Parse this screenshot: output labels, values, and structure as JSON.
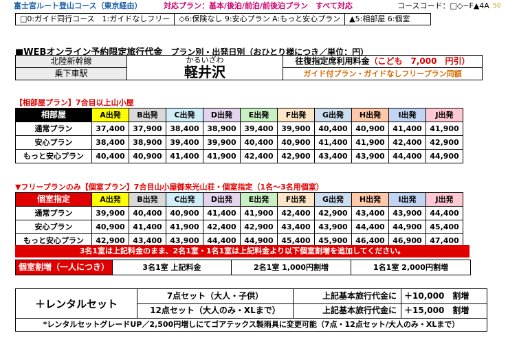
{
  "header": {
    "course_name": "富士宮ルート登山コース（東京経由）",
    "plan_text": "対応プラン：基本/後泊/前泊/前後泊プラン　すべて対応",
    "course_code": "コースコード：□◇−F▲4A",
    "page_num": "50"
  },
  "legend": {
    "col1": "□0:ガイド同行コース　1:ガイドなしフリー",
    "col2": "◇6:保険なし 9:安心プラン A:もっと安心プラン",
    "col3": "▲5:相部屋 6:個室"
  },
  "section": {
    "title": "■WEBオンライン予約限定旅行代金",
    "subtitle": "　プラン別・出発日別（おひとり様につき／単位：円）"
  },
  "station": {
    "line": "北陸新幹線",
    "board_label": "乗下車駅",
    "reading": "かるいざわ",
    "name": "軽井沢",
    "fare_label": "往復指定席利用料金",
    "child_fare": "（こども　7,000　円引）",
    "note": "ガイド付プラン・ガイドなしフリープラン同額"
  },
  "shared_room": {
    "title": "【相部屋プラン】7合目以上山小屋",
    "header_label": "相部屋",
    "departures": [
      "A出発",
      "B出発",
      "C出発",
      "D出発",
      "E出発",
      "F出発",
      "G出発",
      "H出発",
      "I出発",
      "J出発"
    ],
    "rows": [
      {
        "label": "通常プラン",
        "values": [
          "37,400",
          "37,900",
          "38,400",
          "38,900",
          "39,400",
          "39,900",
          "40,400",
          "40,900",
          "41,400",
          "41,900"
        ]
      },
      {
        "label": "安心プラン",
        "values": [
          "38,400",
          "38,900",
          "39,400",
          "39,900",
          "40,400",
          "40,900",
          "41,400",
          "41,900",
          "42,400",
          "42,900"
        ]
      },
      {
        "label": "もっと安心プラン",
        "values": [
          "40,400",
          "40,900",
          "41,400",
          "41,900",
          "42,400",
          "42,900",
          "43,400",
          "43,900",
          "44,400",
          "44,900"
        ]
      }
    ]
  },
  "private_room": {
    "title": "▼フリープランのみ【個室プラン】7合目山小屋御来光山荘・個室指定（1名〜3名用個室）",
    "header_label": "個室指定",
    "departures": [
      "A出発",
      "B出発",
      "C出発",
      "D出発",
      "E出発",
      "F出発",
      "G出発",
      "H出発",
      "I出発",
      "J出発"
    ],
    "rows": [
      {
        "label": "通常プラン",
        "values": [
          "39,900",
          "40,400",
          "40,900",
          "41,400",
          "41,900",
          "42,400",
          "42,900",
          "43,400",
          "43,900",
          "44,400"
        ]
      },
      {
        "label": "安心プラン",
        "values": [
          "40,900",
          "41,400",
          "41,900",
          "42,400",
          "42,900",
          "43,400",
          "43,900",
          "44,400",
          "44,900",
          "45,400"
        ]
      },
      {
        "label": "もっと安心プラン",
        "values": [
          "42,900",
          "43,400",
          "43,900",
          "44,400",
          "44,900",
          "45,400",
          "45,900",
          "46,400",
          "46,900",
          "47,400"
        ]
      }
    ],
    "note": "3名1室は上記料金のまま、2名1室・1名1室は上記料金より以下個室割増を追加してください。"
  },
  "surcharge": {
    "label": "個室割増（一人につき）",
    "items": [
      "3名1室 上記料金",
      "2名1室 1,000円割増",
      "1名1室 2,000円割増"
    ]
  },
  "rental": {
    "label": "＋レンタルセット",
    "rows": [
      {
        "set": "7点セット（大人・子供）",
        "desc": "上記基本旅行代金に",
        "price": "＋10,000　割増"
      },
      {
        "set": "12点セット（大人のみ・XLまで）",
        "desc": "上記基本旅行代金に",
        "price": "＋15,000　割増"
      }
    ],
    "note": "*レンタルセットグレードUP／2,500円増しにてゴアテックス製雨具に変更可能（7点・12点セット/大人のみ・XLまで）"
  },
  "colors": {
    "accent_red": "#e00000",
    "orange": "#d86a00",
    "blue": "#1b5fa8",
    "magenta": "#d0006f"
  }
}
